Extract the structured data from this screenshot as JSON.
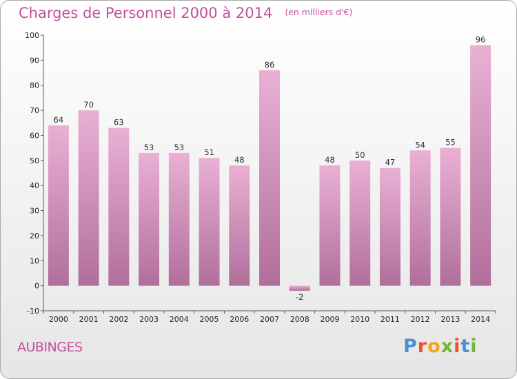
{
  "title": "Charges de Personnel 2000 à 2014",
  "unit_note": "(en milliers d'€)",
  "commune": "AUBINGES",
  "logo": {
    "text": "Proxiti",
    "colors": [
      "#4a8fd1",
      "#e8532e",
      "#f2a51e",
      "#74b43c",
      "#e8532e",
      "#4a8fd1",
      "#74b43c"
    ]
  },
  "colors": {
    "bar_top": "#eab0d4",
    "bar_bottom": "#b06f9a",
    "axis": "#555555",
    "title": "#c44f9e"
  },
  "chart_data": {
    "type": "bar",
    "title": "Charges de Personnel 2000 à 2014",
    "subtitle": "(en milliers d'€)",
    "xlabel": "",
    "ylabel": "",
    "categories": [
      "2000",
      "2001",
      "2002",
      "2003",
      "2004",
      "2005",
      "2006",
      "2007",
      "2008",
      "2009",
      "2010",
      "2011",
      "2012",
      "2013",
      "2014"
    ],
    "values": [
      64,
      70,
      63,
      53,
      53,
      51,
      48,
      86,
      -2,
      48,
      50,
      47,
      54,
      55,
      96
    ],
    "ylim": [
      -10,
      100
    ],
    "yticks": [
      -10,
      0,
      10,
      20,
      30,
      40,
      50,
      60,
      70,
      80,
      90,
      100
    ],
    "grid": false,
    "data_labels": true
  }
}
